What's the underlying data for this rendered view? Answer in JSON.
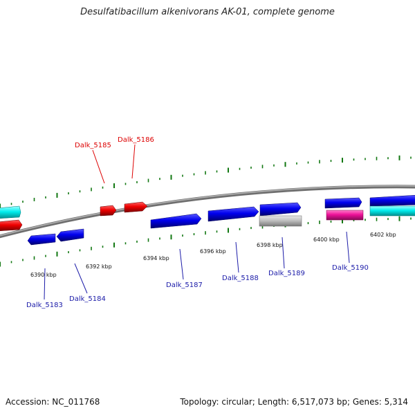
{
  "title": "Desulfatibacillum alkenivorans AK-01, complete genome",
  "footer": {
    "accession": "Accession: NC_011768",
    "topology": "Topology: circular; Length: 6,517,073 bp; Genes: 5,314"
  },
  "colors": {
    "backbone": "#808080",
    "forward_gene": "#0000ee",
    "reverse_gene": "#ee0000",
    "rna_cyan": "#00eeee",
    "magenta": "#ee1199",
    "gray": "#c0c0c0",
    "tick": "#117711",
    "forward_label": "#1a1aa8",
    "reverse_label": "#dd0000"
  },
  "kbp_labels": [
    "6390 kbp",
    "6392 kbp",
    "6394 kbp",
    "6396 kbp",
    "6398 kbp",
    "6400 kbp",
    "6402 kbp"
  ],
  "gene_labels": {
    "forward": [
      "Dalk_5183",
      "Dalk_5184",
      "Dalk_5187",
      "Dalk_5188",
      "Dalk_5189",
      "Dalk_5190"
    ],
    "reverse": [
      "Dalk_5185",
      "Dalk_5186"
    ]
  }
}
